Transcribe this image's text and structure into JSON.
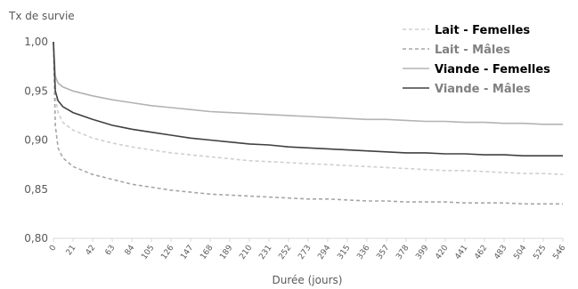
{
  "chart_data": {
    "type": "line",
    "title": "",
    "ylabel": "Tx de survie",
    "xlabel": "Durée (jours)",
    "xlim": [
      0,
      546
    ],
    "ylim": [
      0.8,
      1.0
    ],
    "yticks": [
      {
        "value": 0.8,
        "label": "0,80"
      },
      {
        "value": 0.85,
        "label": "0,85"
      },
      {
        "value": 0.9,
        "label": "0,90"
      },
      {
        "value": 0.95,
        "label": "0,95"
      },
      {
        "value": 1.0,
        "label": "1,00"
      }
    ],
    "xtick_labels": [
      "0",
      "21",
      "42",
      "63",
      "84",
      "105",
      "126",
      "147",
      "168",
      "189",
      "210",
      "231",
      "252",
      "273",
      "294",
      "315",
      "336",
      "357",
      "378",
      "399",
      "420",
      "441",
      "462",
      "483",
      "504",
      "525",
      "546"
    ],
    "grid": false,
    "legend_position": "top-right",
    "series": [
      {
        "name": "Lait - Femelles",
        "color": "#cfcfcf",
        "dash": "dashed",
        "weight": "bold",
        "x": [
          0,
          2,
          5,
          10,
          21,
          42,
          63,
          84,
          105,
          126,
          147,
          168,
          189,
          210,
          231,
          252,
          273,
          294,
          315,
          336,
          357,
          378,
          399,
          420,
          441,
          462,
          483,
          504,
          525,
          546
        ],
        "y": [
          1.0,
          0.945,
          0.928,
          0.918,
          0.91,
          0.902,
          0.897,
          0.893,
          0.89,
          0.887,
          0.885,
          0.883,
          0.881,
          0.879,
          0.878,
          0.877,
          0.876,
          0.875,
          0.874,
          0.873,
          0.872,
          0.871,
          0.87,
          0.869,
          0.869,
          0.868,
          0.867,
          0.866,
          0.866,
          0.865
        ]
      },
      {
        "name": "Lait - Mâles",
        "color": "#a6a6a6",
        "dash": "dashed",
        "weight": "normal",
        "x": [
          0,
          2,
          5,
          10,
          21,
          42,
          63,
          84,
          105,
          126,
          147,
          168,
          189,
          210,
          231,
          252,
          273,
          294,
          315,
          336,
          357,
          378,
          399,
          420,
          441,
          462,
          483,
          504,
          525,
          546
        ],
        "y": [
          1.0,
          0.915,
          0.892,
          0.882,
          0.873,
          0.865,
          0.86,
          0.855,
          0.852,
          0.849,
          0.847,
          0.845,
          0.844,
          0.843,
          0.842,
          0.841,
          0.84,
          0.84,
          0.839,
          0.838,
          0.838,
          0.837,
          0.837,
          0.837,
          0.836,
          0.836,
          0.836,
          0.835,
          0.835,
          0.835
        ]
      },
      {
        "name": "Viande - Femelles",
        "color": "#b3b3b3",
        "dash": "solid",
        "weight": "bold",
        "x": [
          0,
          2,
          5,
          10,
          21,
          42,
          63,
          84,
          105,
          126,
          147,
          168,
          189,
          210,
          231,
          252,
          273,
          294,
          315,
          336,
          357,
          378,
          399,
          420,
          441,
          462,
          483,
          504,
          525,
          546
        ],
        "y": [
          1.0,
          0.965,
          0.958,
          0.954,
          0.95,
          0.945,
          0.941,
          0.938,
          0.935,
          0.933,
          0.931,
          0.929,
          0.928,
          0.927,
          0.926,
          0.925,
          0.924,
          0.923,
          0.922,
          0.921,
          0.921,
          0.92,
          0.919,
          0.919,
          0.918,
          0.918,
          0.917,
          0.917,
          0.916,
          0.916
        ]
      },
      {
        "name": "Viande - Mâles",
        "color": "#404040",
        "dash": "solid",
        "weight": "normal",
        "x": [
          0,
          2,
          5,
          10,
          21,
          42,
          63,
          84,
          105,
          126,
          147,
          168,
          189,
          210,
          231,
          252,
          273,
          294,
          315,
          336,
          357,
          378,
          399,
          420,
          441,
          462,
          483,
          504,
          525,
          546
        ],
        "y": [
          1.0,
          0.95,
          0.94,
          0.934,
          0.928,
          0.921,
          0.915,
          0.911,
          0.908,
          0.905,
          0.902,
          0.9,
          0.898,
          0.896,
          0.895,
          0.893,
          0.892,
          0.891,
          0.89,
          0.889,
          0.888,
          0.887,
          0.887,
          0.886,
          0.886,
          0.885,
          0.885,
          0.884,
          0.884,
          0.884
        ]
      }
    ]
  }
}
